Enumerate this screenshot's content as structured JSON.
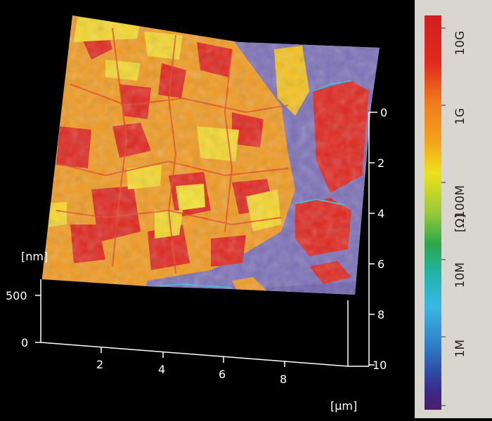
{
  "plot": {
    "z_unit": "[nm]",
    "z_ticks": [
      "500",
      "0"
    ],
    "x_ticks": [
      "2",
      "4",
      "6",
      "8"
    ],
    "x_unit": "[µm]",
    "y_ticks": [
      "0",
      "2",
      "4",
      "6",
      "8",
      "10"
    ]
  },
  "colorbar": {
    "labels": [
      "10G",
      "1G",
      "100M",
      "10M",
      "1M"
    ],
    "unit": "[Ω]",
    "colors": [
      "#d11f1f",
      "#e23a1d",
      "#f08a1c",
      "#f5c21a",
      "#ece21a",
      "#9ac93a",
      "#2aa84a",
      "#23b3b0",
      "#3ab6e6",
      "#2f7cc6",
      "#2d4ea8",
      "#3b2a8a",
      "#4a1f6a"
    ]
  }
}
